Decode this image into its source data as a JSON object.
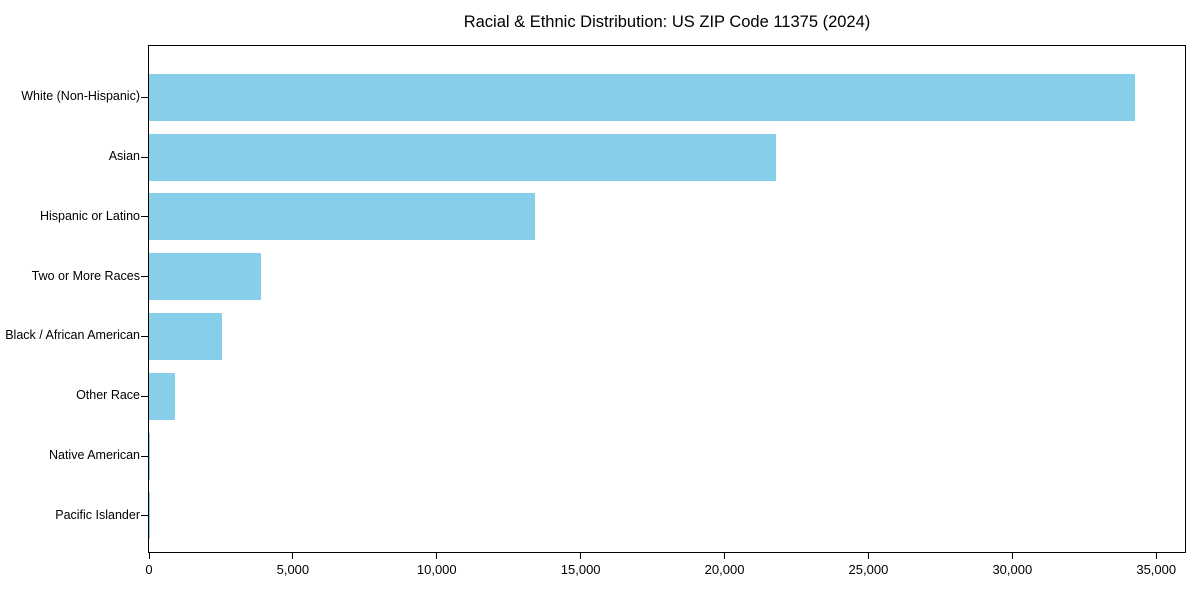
{
  "figure": {
    "background": "#ffffff",
    "frame_color": "#000000",
    "text_color": "#000000"
  },
  "chart_data": {
    "type": "bar",
    "orientation": "horizontal",
    "title": "Racial & Ethnic Distribution: US ZIP Code 11375 (2024)",
    "xlabel": "",
    "ylabel": "",
    "categories": [
      "White (Non-Hispanic)",
      "Asian",
      "Hispanic or Latino",
      "Two or More Races",
      "Black / African American",
      "Other Race",
      "Native American",
      "Pacific Islander"
    ],
    "values": [
      34250,
      21800,
      13400,
      3900,
      2550,
      920,
      50,
      20
    ],
    "xlim": [
      0,
      36000
    ],
    "xticks": [
      0,
      5000,
      10000,
      15000,
      20000,
      25000,
      30000,
      35000
    ],
    "xtick_labels": [
      "0",
      "5,000",
      "10,000",
      "15,000",
      "20,000",
      "25,000",
      "30,000",
      "35,000"
    ],
    "bar_color": "#87CEEB",
    "grid": false,
    "legend": false
  }
}
